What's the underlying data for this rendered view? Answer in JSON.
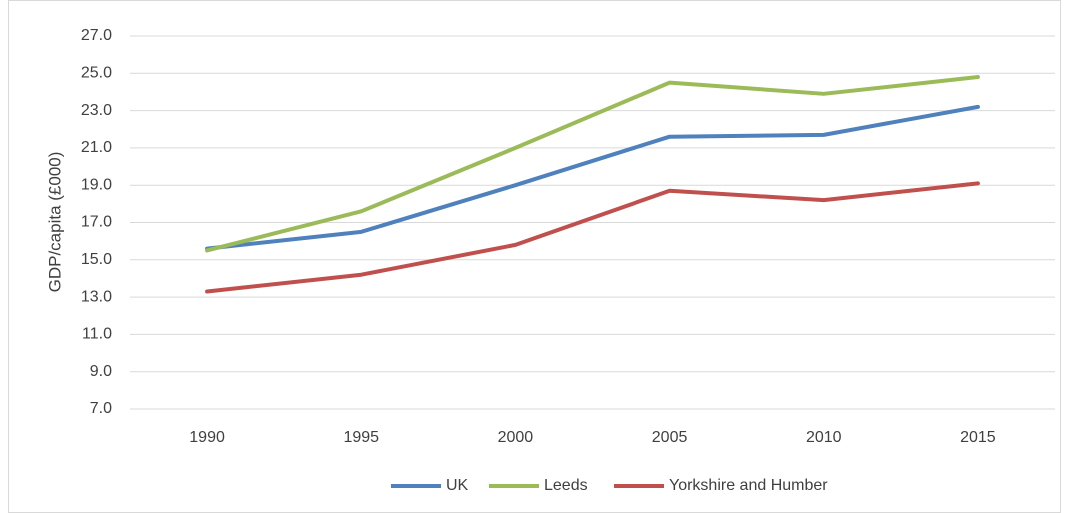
{
  "chart_data": {
    "type": "line",
    "y_label": "GDP/capita (£000)",
    "categories": [
      "1990",
      "1995",
      "2000",
      "2005",
      "2010",
      "2015"
    ],
    "series": [
      {
        "name": "UK",
        "color": "#4f81bd",
        "values": [
          15.6,
          16.5,
          19.0,
          21.6,
          21.7,
          23.2
        ]
      },
      {
        "name": "Leeds",
        "color": "#9bbb59",
        "values": [
          15.5,
          17.6,
          21.0,
          24.5,
          23.9,
          24.8
        ]
      },
      {
        "name": "Yorkshire and Humber",
        "color": "#c0504d",
        "values": [
          13.3,
          14.2,
          15.8,
          18.7,
          18.2,
          19.1
        ]
      }
    ],
    "ylim": [
      7,
      27
    ],
    "yticks": [
      {
        "value": 7,
        "label": "7.0"
      },
      {
        "value": 9,
        "label": "9.0"
      },
      {
        "value": 11,
        "label": "11.0"
      },
      {
        "value": 13,
        "label": "13.0"
      },
      {
        "value": 15,
        "label": "15.0"
      },
      {
        "value": 17,
        "label": "17.0"
      },
      {
        "value": 19,
        "label": "19.0"
      },
      {
        "value": 21,
        "label": "21.0"
      },
      {
        "value": 23,
        "label": "23.0"
      },
      {
        "value": 25,
        "label": "25.0"
      },
      {
        "value": 27,
        "label": "27.0"
      }
    ],
    "grid": true,
    "legend": "bottom"
  }
}
